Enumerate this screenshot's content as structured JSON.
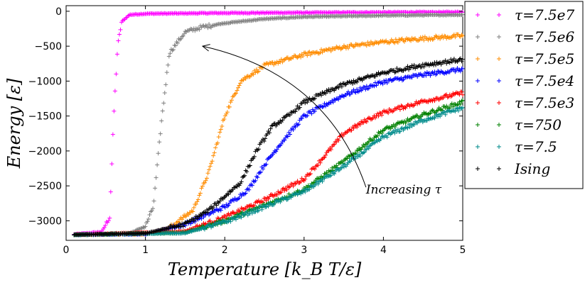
{
  "chart_data": {
    "type": "scatter",
    "xlabel": "Temperature [k_B T/ε]",
    "ylabel": "Energy [ε]",
    "xlim": [
      0,
      5
    ],
    "ylim": [
      -3280,
      80
    ],
    "xticks": [
      "0",
      "1",
      "2",
      "3",
      "4",
      "5"
    ],
    "yticks": [
      "0",
      "−500",
      "−1000",
      "−1500",
      "−2000",
      "−2500",
      "−3000"
    ],
    "xtick_values": [
      0,
      1,
      2,
      3,
      4,
      5
    ],
    "ytick_values": [
      0,
      -500,
      -1000,
      -1500,
      -2000,
      -2500,
      -3000
    ],
    "grid": false,
    "legend_position": "outside-right",
    "marker": "+",
    "series": [
      {
        "name": "τ=7.5e7",
        "color": "#ff00ff",
        "points": [
          [
            0.1,
            -3195
          ],
          [
            0.45,
            -3160
          ],
          [
            0.5,
            -3050
          ],
          [
            0.55,
            -2950
          ],
          [
            0.6,
            -1500
          ],
          [
            0.65,
            -500
          ],
          [
            0.7,
            -150
          ],
          [
            0.8,
            -50
          ],
          [
            1.0,
            -35
          ],
          [
            2.0,
            -25
          ],
          [
            3.0,
            -20
          ],
          [
            4.0,
            -15
          ],
          [
            5.0,
            -12
          ]
        ]
      },
      {
        "name": "τ=7.5e6",
        "color": "#808080",
        "points": [
          [
            0.1,
            -3200
          ],
          [
            0.8,
            -3180
          ],
          [
            1.0,
            -3080
          ],
          [
            1.1,
            -2800
          ],
          [
            1.2,
            -1600
          ],
          [
            1.3,
            -600
          ],
          [
            1.5,
            -300
          ],
          [
            1.7,
            -230
          ],
          [
            2.0,
            -170
          ],
          [
            2.5,
            -110
          ],
          [
            3.0,
            -80
          ],
          [
            4.0,
            -60
          ],
          [
            5.0,
            -50
          ]
        ]
      },
      {
        "name": "τ=7.5e5",
        "color": "#ff8c00",
        "points": [
          [
            0.1,
            -3200
          ],
          [
            1.0,
            -3190
          ],
          [
            1.3,
            -3100
          ],
          [
            1.6,
            -2850
          ],
          [
            1.8,
            -2300
          ],
          [
            2.0,
            -1500
          ],
          [
            2.2,
            -1000
          ],
          [
            2.5,
            -780
          ],
          [
            3.0,
            -620
          ],
          [
            3.5,
            -510
          ],
          [
            4.0,
            -440
          ],
          [
            4.5,
            -390
          ],
          [
            5.0,
            -350
          ]
        ]
      },
      {
        "name": "τ=7.5e4",
        "color": "#0000ff",
        "points": [
          [
            0.1,
            -3200
          ],
          [
            1.0,
            -3190
          ],
          [
            1.5,
            -3050
          ],
          [
            2.0,
            -2800
          ],
          [
            2.3,
            -2550
          ],
          [
            2.5,
            -2200
          ],
          [
            2.7,
            -1900
          ],
          [
            3.0,
            -1500
          ],
          [
            3.5,
            -1200
          ],
          [
            4.0,
            -1010
          ],
          [
            4.5,
            -910
          ],
          [
            5.0,
            -830
          ]
        ]
      },
      {
        "name": "τ=7.5e3",
        "color": "#ff0000",
        "points": [
          [
            0.1,
            -3200
          ],
          [
            1.5,
            -3150
          ],
          [
            2.0,
            -2950
          ],
          [
            2.5,
            -2700
          ],
          [
            3.0,
            -2400
          ],
          [
            3.2,
            -2150
          ],
          [
            3.5,
            -1750
          ],
          [
            3.8,
            -1550
          ],
          [
            4.0,
            -1450
          ],
          [
            4.5,
            -1290
          ],
          [
            5.0,
            -1170
          ]
        ]
      },
      {
        "name": "τ=750",
        "color": "#008000",
        "points": [
          [
            0.1,
            -3200
          ],
          [
            1.5,
            -3170
          ],
          [
            2.0,
            -3000
          ],
          [
            2.5,
            -2780
          ],
          [
            3.0,
            -2550
          ],
          [
            3.5,
            -2150
          ],
          [
            4.0,
            -1700
          ],
          [
            4.5,
            -1480
          ],
          [
            5.0,
            -1300
          ]
        ]
      },
      {
        "name": "τ=7.5",
        "color": "#008b8b",
        "points": [
          [
            0.1,
            -3200
          ],
          [
            1.5,
            -3175
          ],
          [
            2.0,
            -3020
          ],
          [
            2.5,
            -2800
          ],
          [
            3.0,
            -2580
          ],
          [
            3.5,
            -2220
          ],
          [
            4.0,
            -1800
          ],
          [
            4.5,
            -1560
          ],
          [
            5.0,
            -1380
          ]
        ]
      },
      {
        "name": "Ising",
        "color": "#000000",
        "points": [
          [
            0.1,
            -3200
          ],
          [
            1.0,
            -3180
          ],
          [
            1.5,
            -3050
          ],
          [
            1.8,
            -2850
          ],
          [
            2.0,
            -2650
          ],
          [
            2.2,
            -2450
          ],
          [
            2.4,
            -2000
          ],
          [
            2.6,
            -1650
          ],
          [
            2.8,
            -1500
          ],
          [
            3.0,
            -1300
          ],
          [
            3.5,
            -1050
          ],
          [
            4.0,
            -880
          ],
          [
            4.5,
            -770
          ],
          [
            5.0,
            -690
          ]
        ]
      }
    ],
    "annotation": {
      "text": "Increasing τ",
      "text_at": [
        3.78,
        -2560
      ],
      "arrow_from": [
        3.78,
        -2520
      ],
      "arrow_to": [
        1.72,
        -500
      ]
    }
  }
}
